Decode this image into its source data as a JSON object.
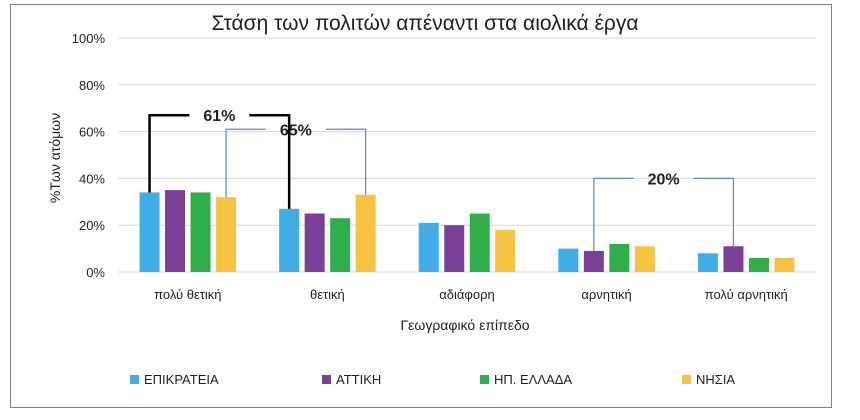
{
  "chart_data": {
    "type": "bar",
    "title": "Στάση των πολιτών απέναντι στα αιολικά έργα",
    "xlabel": "Γεωγραφικό επίπεδο",
    "ylabel": "%Των ατόμων",
    "ylim": [
      0,
      100
    ],
    "yticks": [
      "0%",
      "20%",
      "40%",
      "60%",
      "80%",
      "100%"
    ],
    "ytick_values": [
      0,
      20,
      40,
      60,
      80,
      100
    ],
    "grid": true,
    "legend_position": "bottom",
    "categories": [
      "πολύ θετική",
      "θετική",
      "αδιάφορη",
      "αρνητική",
      "πολύ αρνητική"
    ],
    "series": [
      {
        "name": "ΕΠΙΚΡΑΤΕΙΑ",
        "color": "#41ade6",
        "values": [
          34,
          27,
          21,
          10,
          8
        ]
      },
      {
        "name": "ΑΤΤΙΚΗ",
        "color": "#7b3f98",
        "values": [
          35,
          25,
          20,
          9,
          11
        ]
      },
      {
        "name": "ΗΠ. ΕΛΛΑΔΑ",
        "color": "#2eaf4a",
        "values": [
          34,
          23,
          25,
          12,
          6
        ]
      },
      {
        "name": "ΝΗΣΙΑ",
        "color": "#f7c342",
        "values": [
          32,
          33,
          18,
          11,
          6
        ]
      }
    ],
    "annotations": [
      {
        "text": "61%",
        "color": "#000000",
        "bracket_series": 0,
        "from_category": 0,
        "to_category": 1,
        "level": 67
      },
      {
        "text": "65%",
        "color": "#5b8ab5",
        "bracket_series": 3,
        "from_category": 0,
        "to_category": 1,
        "level": 61
      },
      {
        "text": "20%",
        "color": "#5b8ab5",
        "bracket_series": 1,
        "from_category": 3,
        "to_category": 4,
        "level": 40
      }
    ]
  }
}
